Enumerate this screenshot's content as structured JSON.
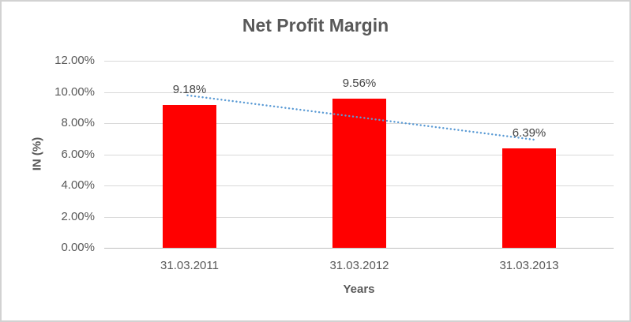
{
  "chart_data": {
    "type": "bar",
    "title": "Net Profit Margin",
    "xlabel": "Years",
    "ylabel": "IN (%)",
    "categories": [
      "31.03.2011",
      "31.03.2012",
      "31.03.2013"
    ],
    "values": [
      9.18,
      9.56,
      6.39
    ],
    "data_labels": [
      "9.18%",
      "9.56%",
      "6.39%"
    ],
    "y_tick_labels": [
      "0.00%",
      "2.00%",
      "4.00%",
      "6.00%",
      "8.00%",
      "10.00%",
      "12.00%"
    ],
    "ylim": [
      0,
      12
    ],
    "y_tick_step": 2,
    "grid": true,
    "legend": "none",
    "trendline": {
      "type": "linear",
      "style": "dotted",
      "color": "#5B9BD5"
    },
    "colors": {
      "bar": "#FF0000",
      "title": "#595959",
      "axis_text": "#595959",
      "data_label": "#444444",
      "gridline": "#D9D9D9",
      "axis_line": "#BFBFBF",
      "background": "#FFFFFF",
      "border": "#D2D2D2"
    }
  }
}
